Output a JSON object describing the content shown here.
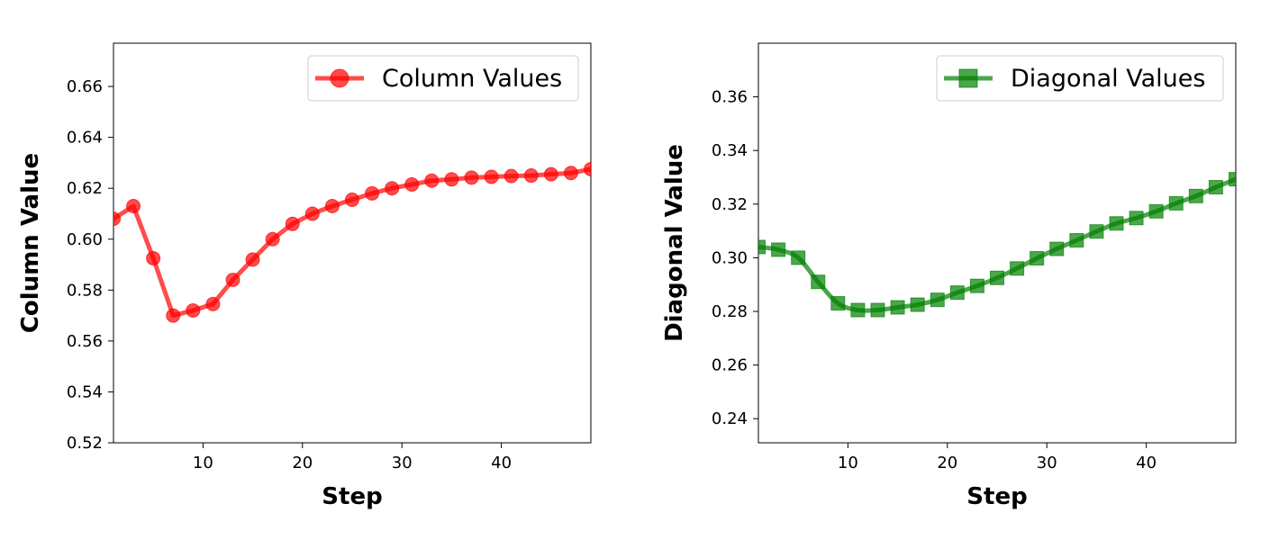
{
  "chart_data": [
    {
      "type": "line",
      "xlabel": "Step",
      "ylabel": "Column Value",
      "xlim": [
        1,
        49
      ],
      "ylim": [
        0.52,
        0.677
      ],
      "xticks": [
        10,
        20,
        30,
        40
      ],
      "yticks": [
        0.52,
        0.54,
        0.56,
        0.58,
        0.6,
        0.62,
        0.64,
        0.66
      ],
      "ytick_format": 2,
      "grid": false,
      "legend_position": "top-right",
      "series": [
        {
          "name": "Column Values",
          "color": "#ff0000",
          "marker": "circle",
          "x": [
            1,
            3,
            5,
            7,
            9,
            11,
            13,
            15,
            17,
            19,
            21,
            23,
            25,
            27,
            29,
            31,
            33,
            35,
            37,
            39,
            41,
            43,
            45,
            47,
            49
          ],
          "values": [
            0.608,
            0.613,
            0.5925,
            0.57,
            0.572,
            0.5745,
            0.584,
            0.592,
            0.6,
            0.606,
            0.61,
            0.613,
            0.6155,
            0.618,
            0.62,
            0.6215,
            0.623,
            0.6235,
            0.6242,
            0.6245,
            0.6248,
            0.625,
            0.6255,
            0.626,
            0.6275
          ]
        }
      ]
    },
    {
      "type": "line",
      "xlabel": "Step",
      "ylabel": "Diagonal Value",
      "xlim": [
        1,
        49
      ],
      "ylim": [
        0.231,
        0.38
      ],
      "xticks": [
        10,
        20,
        30,
        40
      ],
      "yticks": [
        0.24,
        0.26,
        0.28,
        0.3,
        0.32,
        0.34,
        0.36
      ],
      "ytick_format": 2,
      "grid": false,
      "legend_position": "top-right",
      "series": [
        {
          "name": "Diagonal Values",
          "color": "#008000",
          "marker": "square",
          "x": [
            1,
            3,
            5,
            7,
            9,
            11,
            13,
            15,
            17,
            19,
            21,
            23,
            25,
            27,
            29,
            31,
            33,
            35,
            37,
            39,
            41,
            43,
            45,
            47,
            49
          ],
          "values": [
            0.304,
            0.303,
            0.3,
            0.291,
            0.283,
            0.2805,
            0.2805,
            0.2815,
            0.2825,
            0.2843,
            0.287,
            0.2895,
            0.2925,
            0.296,
            0.2998,
            0.3033,
            0.3065,
            0.3098,
            0.3128,
            0.3148,
            0.3173,
            0.3203,
            0.323,
            0.3263,
            0.3293
          ]
        }
      ]
    }
  ]
}
